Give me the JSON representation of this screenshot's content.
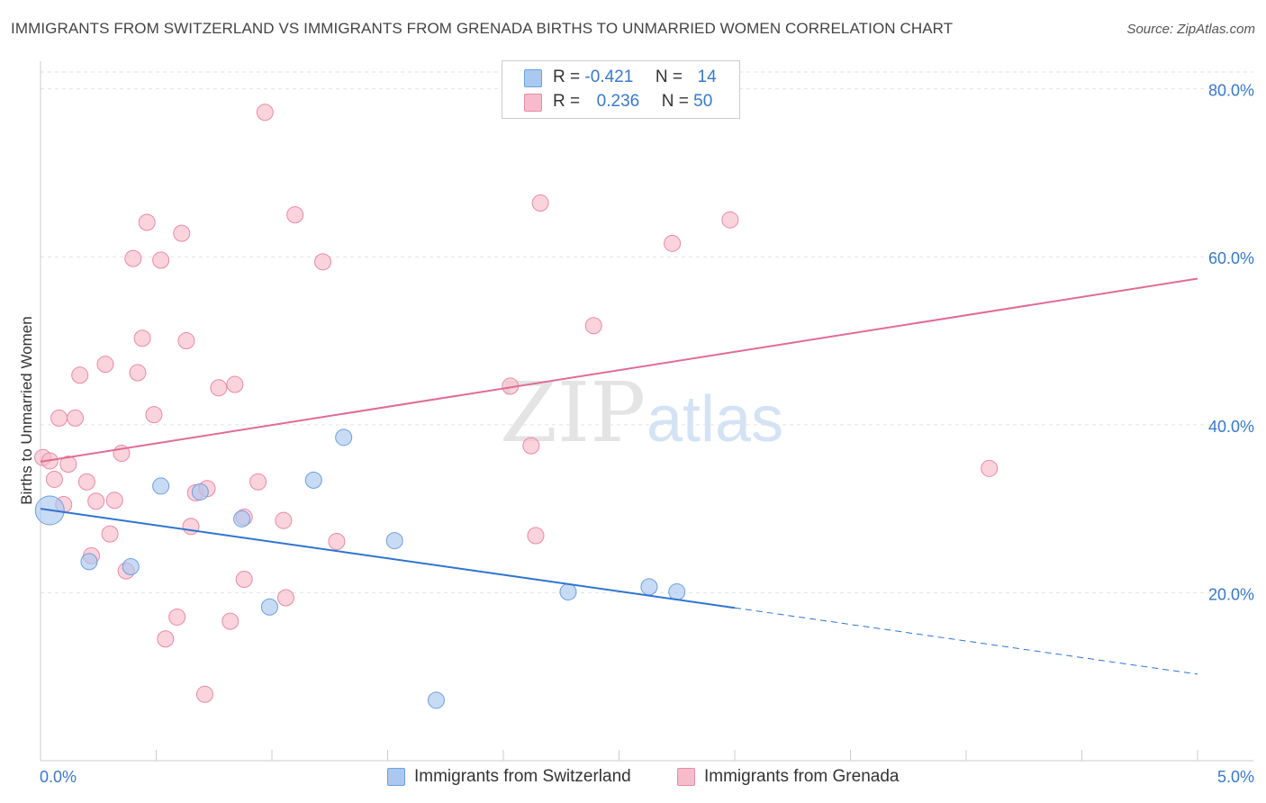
{
  "header": {
    "title": "IMMIGRANTS FROM SWITZERLAND VS IMMIGRANTS FROM GRENADA BIRTHS TO UNMARRIED WOMEN CORRELATION CHART",
    "source": "Source: ZipAtlas.com"
  },
  "watermark": {
    "zip": "ZIP",
    "atlas": "atlas"
  },
  "legend": {
    "r_label": "R =",
    "n_label": "N =",
    "rows": [
      {
        "r": "-0.421",
        "n": "14",
        "color": "#aac8f0",
        "border": "#6e9fdc"
      },
      {
        "r": "0.236",
        "n": "50",
        "color": "#f7bccb",
        "border": "#e88aa5"
      }
    ]
  },
  "chart_data": {
    "type": "scatter",
    "ylabel": "Births to Unmarried Women",
    "xlim": [
      0.0,
      5.0
    ],
    "ylim": [
      0.0,
      82.0
    ],
    "x_tick_labels": [
      "0.0%",
      "5.0%"
    ],
    "y_ticks": [
      20,
      40,
      60,
      80
    ],
    "y_tick_labels": [
      "20.0%",
      "40.0%",
      "60.0%",
      "80.0%"
    ],
    "grid": true,
    "legend_position": "bottom-center",
    "series": [
      {
        "name": "Immigrants from Switzerland",
        "color": "#aac8f0",
        "stroke": "#6e9fdc",
        "line_color": "#2f74d0",
        "trend": {
          "x0": 0.0,
          "y0": 30.0,
          "x1": 3.0,
          "y1": 18.2,
          "dash_to_x": 5.0,
          "dash_to_y": 10.3
        },
        "points": [
          [
            0.04,
            29.8,
            16
          ],
          [
            0.21,
            23.7,
            9
          ],
          [
            0.39,
            23.1,
            9
          ],
          [
            0.52,
            32.7,
            9
          ],
          [
            0.69,
            32.0,
            9
          ],
          [
            0.87,
            28.8,
            9
          ],
          [
            0.99,
            18.3,
            9
          ],
          [
            1.18,
            33.4,
            9
          ],
          [
            1.31,
            38.5,
            9
          ],
          [
            1.53,
            26.2,
            9
          ],
          [
            1.71,
            7.2,
            9
          ],
          [
            2.28,
            20.1,
            9
          ],
          [
            2.63,
            20.7,
            9
          ],
          [
            2.75,
            20.1,
            9
          ]
        ]
      },
      {
        "name": "Immigrants from Grenada",
        "color": "#f7bccb",
        "stroke": "#e88aa5",
        "line_color": "#e06c93",
        "trend": {
          "x0": 0.0,
          "y0": 35.6,
          "x1": 5.0,
          "y1": 57.4
        },
        "points": [
          [
            0.01,
            36.1,
            9
          ],
          [
            0.04,
            35.7,
            9
          ],
          [
            0.06,
            33.5,
            9
          ],
          [
            0.08,
            40.8,
            9
          ],
          [
            0.1,
            30.5,
            9
          ],
          [
            0.12,
            35.3,
            9
          ],
          [
            0.15,
            40.8,
            9
          ],
          [
            0.17,
            45.9,
            9
          ],
          [
            0.2,
            33.2,
            9
          ],
          [
            0.22,
            24.4,
            9
          ],
          [
            0.24,
            30.9,
            9
          ],
          [
            0.28,
            47.2,
            9
          ],
          [
            0.3,
            27.0,
            9
          ],
          [
            0.32,
            31.0,
            9
          ],
          [
            0.35,
            36.6,
            9
          ],
          [
            0.37,
            22.6,
            9
          ],
          [
            0.4,
            59.8,
            9
          ],
          [
            0.42,
            46.2,
            9
          ],
          [
            0.44,
            50.3,
            9
          ],
          [
            0.46,
            64.1,
            9
          ],
          [
            0.49,
            41.2,
            9
          ],
          [
            0.52,
            59.6,
            9
          ],
          [
            0.54,
            14.5,
            9
          ],
          [
            0.59,
            17.1,
            9
          ],
          [
            0.61,
            62.8,
            9
          ],
          [
            0.63,
            50.0,
            9
          ],
          [
            0.65,
            27.9,
            9
          ],
          [
            0.67,
            31.9,
            9
          ],
          [
            0.71,
            7.9,
            9
          ],
          [
            0.72,
            32.4,
            9
          ],
          [
            0.77,
            44.4,
            9
          ],
          [
            0.82,
            16.6,
            9
          ],
          [
            0.84,
            44.8,
            9
          ],
          [
            0.88,
            29.0,
            9
          ],
          [
            0.88,
            21.6,
            9
          ],
          [
            0.94,
            33.2,
            9
          ],
          [
            0.97,
            77.2,
            9
          ],
          [
            1.05,
            28.6,
            9
          ],
          [
            1.06,
            19.4,
            9
          ],
          [
            1.1,
            65.0,
            9
          ],
          [
            1.22,
            59.4,
            9
          ],
          [
            1.28,
            26.1,
            9
          ],
          [
            2.03,
            44.6,
            9
          ],
          [
            2.12,
            37.5,
            9
          ],
          [
            2.14,
            26.8,
            9
          ],
          [
            2.16,
            66.4,
            9
          ],
          [
            2.39,
            51.8,
            9
          ],
          [
            2.73,
            61.6,
            9
          ],
          [
            2.98,
            64.4,
            9
          ],
          [
            4.1,
            34.8,
            9
          ]
        ]
      }
    ]
  }
}
